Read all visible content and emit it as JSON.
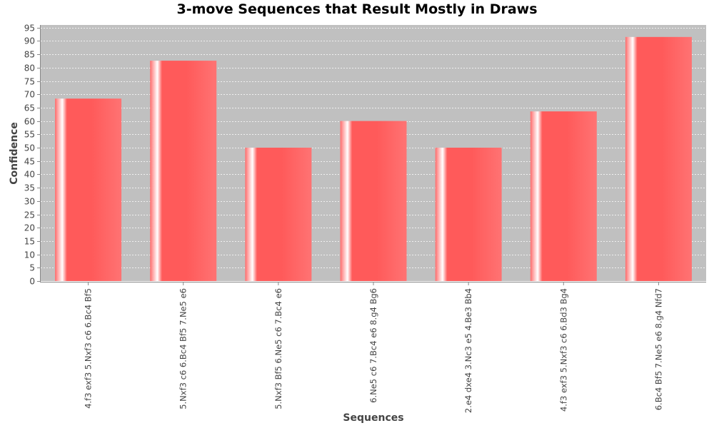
{
  "chart_data": {
    "type": "bar",
    "title": "3-move Sequences that Result Mostly in Draws",
    "xlabel": "Sequences",
    "ylabel": "Confidence",
    "ylim": [
      0,
      96
    ],
    "yticks": [
      0,
      5,
      10,
      15,
      20,
      25,
      30,
      35,
      40,
      45,
      50,
      55,
      60,
      65,
      70,
      75,
      80,
      85,
      90,
      95
    ],
    "grid": true,
    "categories": [
      "4.f3 exf3 5.Nxf3 c6 6.Bc4 Bf5",
      "5.Nxf3 c6 6.Bc4 Bf5 7.Ne5 e6",
      "5.Nxf3 Bf5 6.Ne5 c6 7.Bc4 e6",
      "6.Ne5 c6 7.Bc4 e6 8.g4 Bg6",
      "2.e4 dxe4 3.Nc3 e5 4.Be3 Bb4",
      "4.f3 exf3 5.Nxf3 c6 6.Bd3 Bg4",
      "6.Bc4 Bf5 7.Ne5 e6 8.g4 Nfd7"
    ],
    "values": [
      68.4,
      82.6,
      50,
      60,
      50,
      63.6,
      91.5
    ],
    "colors": {
      "bar": "#ff5a5a",
      "plot_bg": "#c0c0c0",
      "grid": "#ffffff"
    }
  }
}
